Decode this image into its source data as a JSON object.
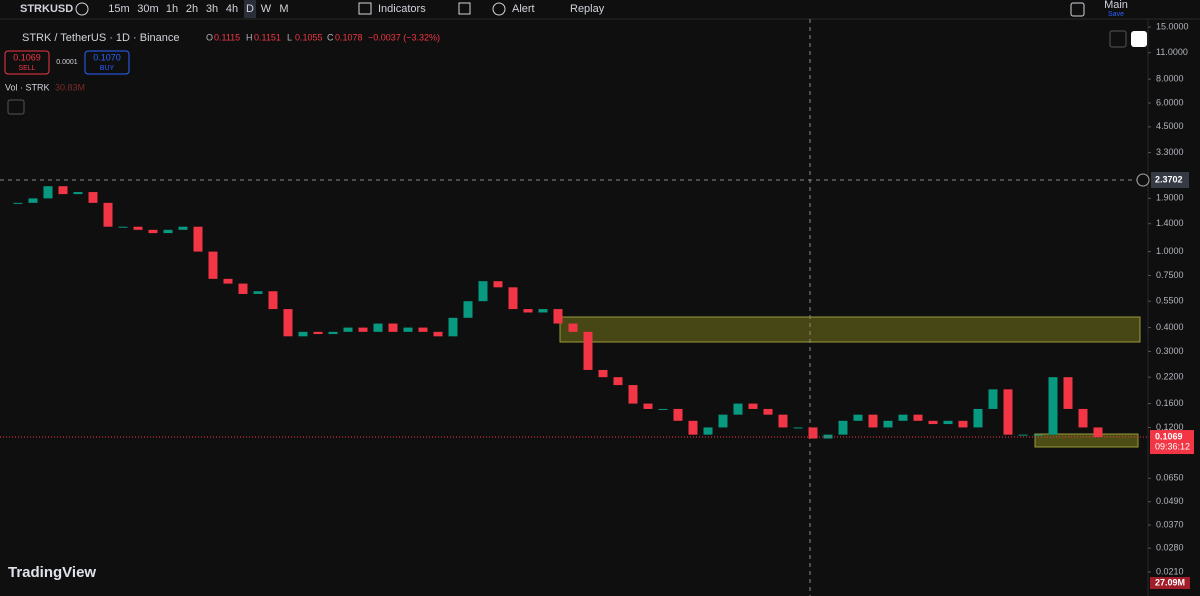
{
  "toolbar": {
    "symbol": "STRKUSD",
    "intervals": [
      "15m",
      "30m",
      "1h",
      "2h",
      "3h",
      "4h",
      "D",
      "W",
      "M"
    ],
    "indicators": "Indicators",
    "alert": "Alert",
    "replay": "Replay",
    "layout_name": "Main",
    "layout_status": "Save"
  },
  "legend": {
    "title": "STRK / TetherUS · 1D · Binance",
    "open_label": "O",
    "open": "0.1115",
    "high_label": "H",
    "high": "0.1151",
    "low_label": "L",
    "low": "0.1055",
    "close_label": "C",
    "close": "0.1078",
    "change": "−0.0037 (−3.32%)"
  },
  "sell": {
    "price": "0.1069",
    "label": "SELL"
  },
  "spread": "0.0001",
  "buy": {
    "price": "0.1070",
    "label": "BUY"
  },
  "volume": {
    "label": "Vol · STRK",
    "value": "30.83M"
  },
  "price_axis": {
    "scale": "log",
    "ticks": [
      {
        "value": 15,
        "label": "15.0000"
      },
      {
        "value": 11,
        "label": "11.0000"
      },
      {
        "value": 8,
        "label": "8.0000"
      },
      {
        "value": 6,
        "label": "6.0000"
      },
      {
        "value": 4.5,
        "label": "4.5000"
      },
      {
        "value": 3.3,
        "label": "3.3000"
      },
      {
        "value": 1.9,
        "label": "1.9000"
      },
      {
        "value": 1.4,
        "label": "1.4000"
      },
      {
        "value": 1,
        "label": "1.0000"
      },
      {
        "value": 0.75,
        "label": "0.7500"
      },
      {
        "value": 0.55,
        "label": "0.5500"
      },
      {
        "value": 0.4,
        "label": "0.4000"
      },
      {
        "value": 0.3,
        "label": "0.3000"
      },
      {
        "value": 0.22,
        "label": "0.2200"
      },
      {
        "value": 0.16,
        "label": "0.1600"
      },
      {
        "value": 0.12,
        "label": "0.1200"
      },
      {
        "value": 0.065,
        "label": "0.0650"
      },
      {
        "value": 0.049,
        "label": "0.0490"
      },
      {
        "value": 0.037,
        "label": "0.0370"
      },
      {
        "value": 0.028,
        "label": "0.0280"
      },
      {
        "value": 0.021,
        "label": "0.0210"
      }
    ],
    "crosshair": 2.3702,
    "last": 0.1069,
    "countdown": "09:36:12",
    "volume_last": "27.09M"
  },
  "candles": {
    "closes": [
      1.8,
      1.9,
      2.2,
      2.0,
      2.05,
      1.8,
      1.35,
      1.35,
      1.3,
      1.25,
      1.3,
      1.35,
      1.0,
      0.72,
      0.68,
      0.6,
      0.62,
      0.5,
      0.36,
      0.38,
      0.37,
      0.38,
      0.4,
      0.38,
      0.42,
      0.38,
      0.4,
      0.38,
      0.36,
      0.45,
      0.55,
      0.7,
      0.65,
      0.5,
      0.48,
      0.5,
      0.42,
      0.38,
      0.24,
      0.22,
      0.2,
      0.16,
      0.15,
      0.15,
      0.13,
      0.11,
      0.12,
      0.14,
      0.16,
      0.15,
      0.14,
      0.12,
      0.12,
      0.105,
      0.11,
      0.13,
      0.14,
      0.12,
      0.13,
      0.14,
      0.13,
      0.125,
      0.13,
      0.12,
      0.15,
      0.19,
      0.11,
      0.11,
      0.11,
      0.22,
      0.15,
      0.12,
      0.107
    ]
  },
  "brand": "TradingView"
}
